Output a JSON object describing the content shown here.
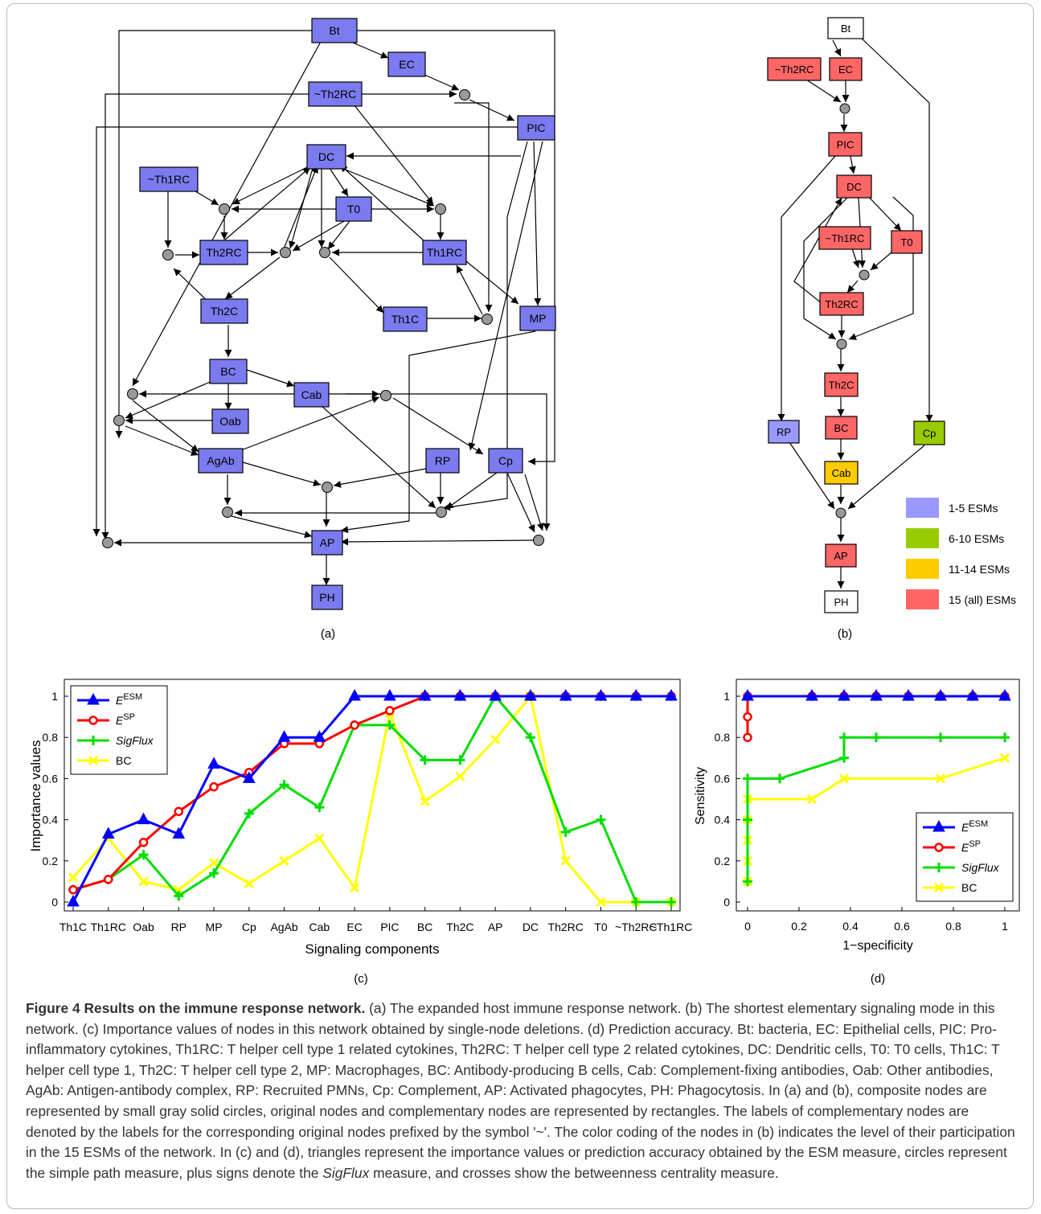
{
  "figure": {
    "panel_labels": [
      "(a)",
      "(b)",
      "(c)",
      "(d)"
    ],
    "caption": {
      "title": "Figure 4 Results on the immune response network.",
      "body_1": " (a) The expanded host immune response network. (b) The shortest elementary signaling mode in this network. (c) Importance values of nodes in this network obtained by single-node deletions. (d) Prediction accuracy. Bt: bacteria, EC: Epithelial cells, PIC: Pro-inflammatory cytokines, Th1RC: T helper cell type 1 related cytokines, Th2RC: T helper cell type 2 related cytokines, DC: Dendritic cells, T0: T0 cells, Th1C: T helper cell type 1, Th2C: T helper cell type 2, MP: Macrophages, BC: Antibody-producing B cells, Cab: Complement-fixing antibodies, Oab: Other antibodies, AgAb: Antigen-antibody complex, RP: Recruited PMNs, Cp: Complement, AP: Activated phagocytes, PH: Phagocytosis. In (a) and (b), composite nodes are represented by small gray solid circles, original nodes and complementary nodes are represented by rectangles. The labels of complementary nodes are denoted by the labels for the corresponding original nodes prefixed by the symbol '~'. The color coding of the nodes in (b) indicates the level of their participation in the 15 ESMs of the network. In (c) and (d), triangles represent the importance values or prediction accuracy obtained by the ESM measure, circles represent the simple path measure, plus signs denote the ",
      "em": "SigFlux",
      "body_2": " measure, and crosses show the betweenness centrality measure."
    }
  },
  "network_a": {
    "nodes": [
      "Bt",
      "EC",
      "~Th2RC",
      "PIC",
      "DC",
      "~Th1RC",
      "T0",
      "Th2RC",
      "Th1RC",
      "Th2C",
      "Th1C",
      "MP",
      "BC",
      "Cab",
      "Oab",
      "AgAb",
      "RP",
      "Cp",
      "AP",
      "PH"
    ]
  },
  "network_b": {
    "nodes": [
      "Bt",
      "~Th2RC",
      "EC",
      "PIC",
      "DC",
      "~Th1RC",
      "T0",
      "Th2RC",
      "Th2C",
      "BC",
      "RP",
      "Cp",
      "Cab",
      "AP",
      "PH"
    ],
    "legend": [
      {
        "label": "1-5 ESMs",
        "color": "#9999ff"
      },
      {
        "label": "6-10 ESMs",
        "color": "#99cc00"
      },
      {
        "label": "11-14 ESMs",
        "color": "#ffcc00"
      },
      {
        "label": "15 (all) ESMs",
        "color": "#ff6666"
      }
    ]
  },
  "colors": {
    "node_a": "#7b7bf0",
    "composite": "#999999",
    "series_esm": "#0000ff",
    "series_sp": "#ff0000",
    "series_sigflux": "#00dd00",
    "series_bc": "#ffff00"
  },
  "chart_data": [
    {
      "type": "line",
      "xlabel": "Signaling components",
      "ylabel": "Importance values",
      "ylim": [
        0,
        1.05
      ],
      "yticks": [
        "0",
        "0.2",
        "0.4",
        "0.6",
        "0.8",
        "1"
      ],
      "categories": [
        "Th1C",
        "Th1RC",
        "Oab",
        "RP",
        "MP",
        "Cp",
        "AgAb",
        "Cab",
        "EC",
        "PIC",
        "BC",
        "Th2C",
        "AP",
        "DC",
        "Th2RC",
        "T0",
        "~Th2RC",
        "~Th1RC"
      ],
      "legend_position": "top-left",
      "series": [
        {
          "name": "E^ESM",
          "legend_base": "E",
          "legend_sup": "ESM",
          "marker": "triangle",
          "values": [
            0,
            0.33,
            0.4,
            0.33,
            0.67,
            0.6,
            0.8,
            0.8,
            1,
            1,
            1,
            1,
            1,
            1,
            1,
            1,
            1,
            1
          ]
        },
        {
          "name": "E^SP",
          "legend_base": "E",
          "legend_sup": "SP",
          "marker": "circle",
          "values": [
            0.06,
            0.11,
            0.29,
            0.44,
            0.56,
            0.63,
            0.77,
            0.77,
            0.86,
            0.93,
            1,
            1,
            1,
            1,
            1,
            1,
            1,
            1
          ]
        },
        {
          "name": "SigFlux",
          "legend_base": "SigFlux",
          "legend_sup": "",
          "marker": "plus",
          "values": [
            0.06,
            0.11,
            0.23,
            0.03,
            0.14,
            0.43,
            0.57,
            0.46,
            0.86,
            0.86,
            0.69,
            0.69,
            1,
            0.8,
            0.34,
            0.4,
            0,
            0
          ]
        },
        {
          "name": "BC",
          "legend_base": "BC",
          "legend_sup": "",
          "marker": "cross",
          "values": [
            0.12,
            0.31,
            0.1,
            0.06,
            0.19,
            0.09,
            0.2,
            0.31,
            0.07,
            0.92,
            0.49,
            0.61,
            0.79,
            1,
            0.2,
            0,
            0,
            0
          ]
        }
      ]
    },
    {
      "type": "line",
      "xlabel": "1−specificity",
      "ylabel": "Sensitivity",
      "xlim": [
        0,
        1
      ],
      "ylim": [
        0,
        1.05
      ],
      "xticks": [
        "0",
        "0.2",
        "0.4",
        "0.6",
        "0.8",
        "1"
      ],
      "yticks": [
        "0",
        "0.2",
        "0.4",
        "0.6",
        "0.8",
        "1"
      ],
      "legend_position": "bottom-right",
      "series": [
        {
          "name": "E^ESM",
          "legend_base": "E",
          "legend_sup": "ESM",
          "marker": "triangle",
          "points": [
            [
              0,
              1
            ],
            [
              0.25,
              1
            ],
            [
              0.375,
              1
            ],
            [
              0.5,
              1
            ],
            [
              0.625,
              1
            ],
            [
              0.75,
              1
            ],
            [
              0.875,
              1
            ],
            [
              1,
              1
            ]
          ]
        },
        {
          "name": "E^SP",
          "legend_base": "E",
          "legend_sup": "SP",
          "marker": "circle",
          "points": [
            [
              0,
              0.8
            ],
            [
              0,
              0.9
            ],
            [
              0,
              1
            ],
            [
              0.25,
              1
            ],
            [
              0.375,
              1
            ],
            [
              0.5,
              1
            ],
            [
              0.625,
              1
            ],
            [
              0.75,
              1
            ],
            [
              0.875,
              1
            ],
            [
              1,
              1
            ]
          ]
        },
        {
          "name": "SigFlux",
          "legend_base": "SigFlux",
          "legend_sup": "",
          "marker": "plus",
          "points": [
            [
              0,
              0.1
            ],
            [
              0,
              0.4
            ],
            [
              0,
              0.6
            ],
            [
              0.125,
              0.6
            ],
            [
              0.375,
              0.7
            ],
            [
              0.375,
              0.8
            ],
            [
              0.5,
              0.8
            ],
            [
              0.75,
              0.8
            ],
            [
              1,
              0.8
            ]
          ]
        },
        {
          "name": "BC",
          "legend_base": "BC",
          "legend_sup": "",
          "marker": "cross",
          "points": [
            [
              0,
              0.1
            ],
            [
              0,
              0.2
            ],
            [
              0,
              0.3
            ],
            [
              0,
              0.4
            ],
            [
              0,
              0.5
            ],
            [
              0.25,
              0.5
            ],
            [
              0.375,
              0.6
            ],
            [
              0.75,
              0.6
            ],
            [
              1,
              0.7
            ]
          ]
        }
      ]
    }
  ]
}
